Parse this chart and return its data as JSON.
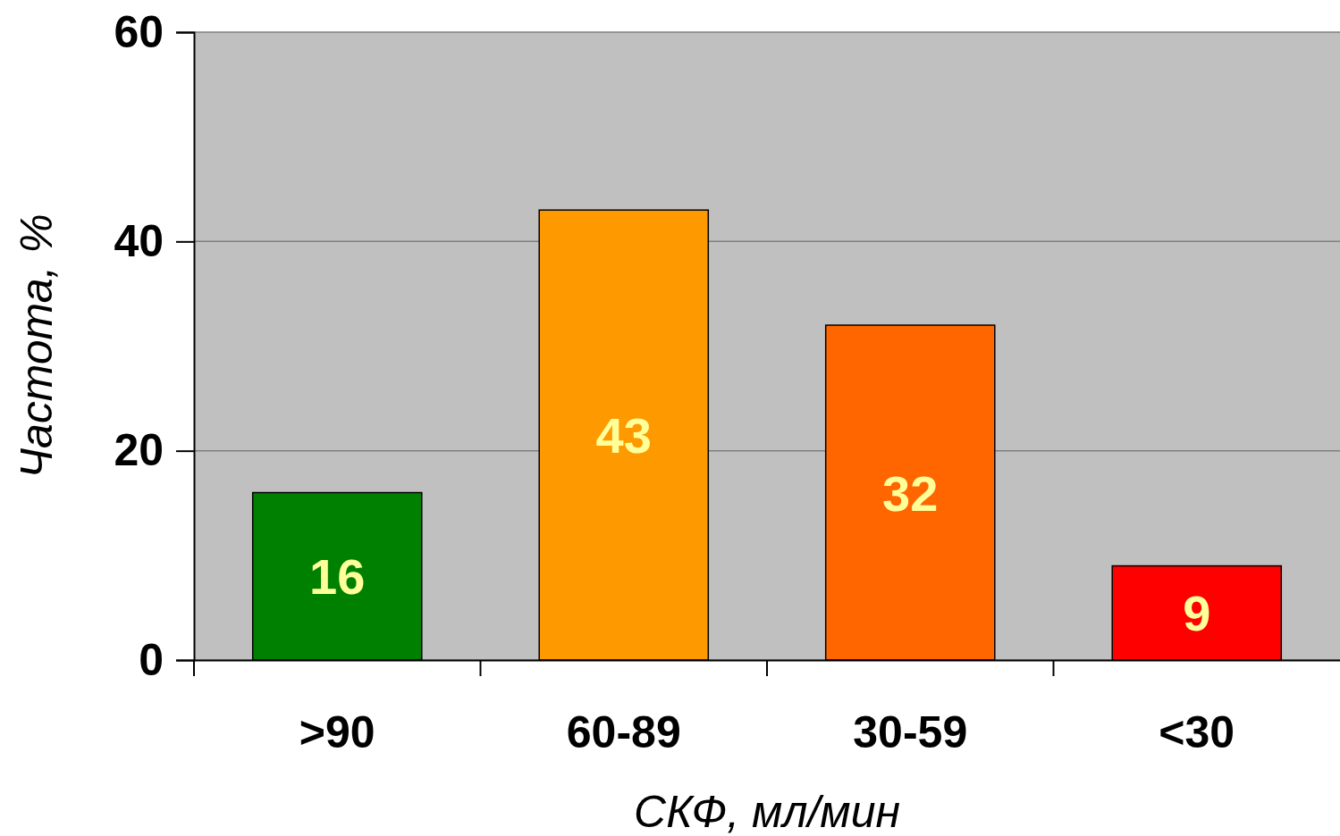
{
  "chart_data": {
    "type": "bar",
    "xlabel": "СКФ, мл/мин",
    "ylabel": "Частота, %",
    "categories": [
      ">90",
      "60-89",
      "30-59",
      "<30"
    ],
    "values": [
      16,
      43,
      32,
      9
    ],
    "colors": [
      "#008000",
      "#ff9900",
      "#ff6600",
      "#ff0000"
    ],
    "ylim": [
      0,
      60
    ],
    "yticks": [
      0,
      20,
      40,
      60
    ],
    "grid": "y",
    "data_labels": true
  }
}
